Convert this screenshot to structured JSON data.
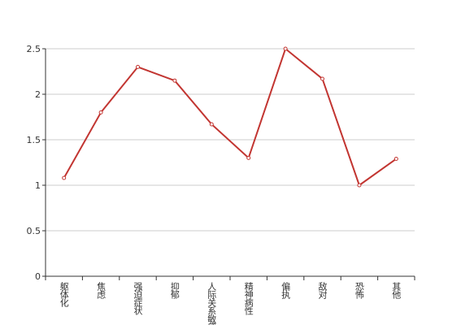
{
  "chart_data": {
    "type": "line",
    "categories": [
      "躯体化",
      "焦虑",
      "强迫症状",
      "抑郁",
      "人际关系敏感",
      "精神病性",
      "偏执",
      "敌对",
      "恐怖",
      "其他"
    ],
    "series": [
      {
        "color": "#c23531",
        "values": [
          1.08,
          1.8,
          2.3,
          2.15,
          1.67,
          1.3,
          2.5,
          2.17,
          1.0,
          1.29
        ]
      }
    ],
    "ylim": [
      0,
      2.5
    ],
    "yticks": [
      0,
      0.5,
      1,
      1.5,
      2,
      2.5
    ],
    "grid": true
  }
}
